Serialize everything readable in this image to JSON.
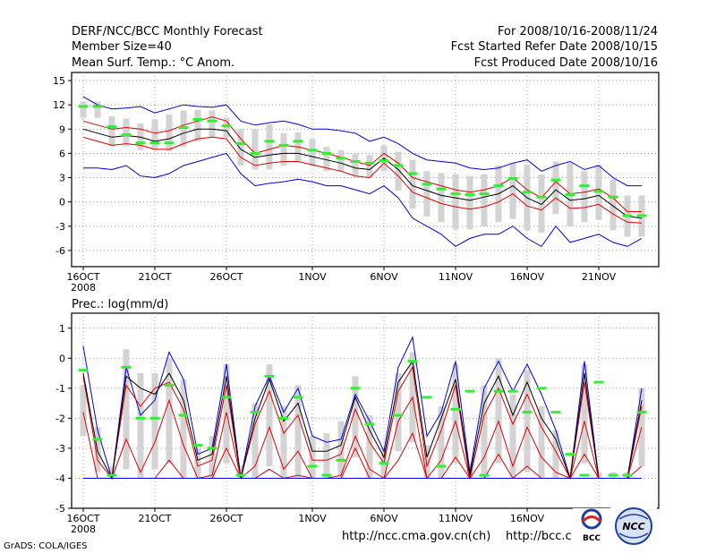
{
  "header": {
    "title_line1": "DERF/NCC/BCC Monthly Forecast",
    "title_line2": "Member Size=40",
    "title_line3": "Mean Surf. Temp.: °C Anom.",
    "period": "For 2008/10/16-2008/11/24",
    "refer_date": "Fcst Started Refer Date 2008/10/15",
    "produced_date": "Fcst Produced Date 2008/10/16"
  },
  "footer": {
    "credit": "GrADS: COLA/IGES",
    "url1": "http://ncc.cma.gov.cn(ch)",
    "url2": "http://bcc.c",
    "logo1_text": "BCC",
    "logo2_text": "NCC"
  },
  "colors": {
    "ensemble_bar": "#d3d3d3",
    "ensemble_mean": "#000000",
    "inner_band": "#e00000",
    "outer_band": "#0000e0",
    "observed": "#33ee33"
  },
  "chart_data": [
    {
      "type": "line",
      "title": "Mean Surf. Temp.: °C Anom.",
      "xlabel": "",
      "ylabel": "°C anomaly",
      "days": 40,
      "xticks": [
        {
          "day": 0,
          "label": "16OCT"
        },
        {
          "day": 5,
          "label": "21OCT"
        },
        {
          "day": 10,
          "label": "26OCT"
        },
        {
          "day": 16,
          "label": "1NOV"
        },
        {
          "day": 21,
          "label": "6NOV"
        },
        {
          "day": 26,
          "label": "11NOV"
        },
        {
          "day": 31,
          "label": "16NOV"
        },
        {
          "day": 36,
          "label": "21NOV"
        }
      ],
      "year_label": "2008",
      "ylim": [
        -8,
        16
      ],
      "yticks": [
        -6,
        -3,
        0,
        3,
        6,
        9,
        12,
        15
      ],
      "grid": true,
      "series": [
        {
          "name": "max",
          "style": "blue",
          "values": [
            13.0,
            12.0,
            11.5,
            11.6,
            11.8,
            11.0,
            11.5,
            12.0,
            11.8,
            11.7,
            12.0,
            10.0,
            9.5,
            9.8,
            10.0,
            9.6,
            9.0,
            9.0,
            8.8,
            8.5,
            7.5,
            8.0,
            7.2,
            6.0,
            5.2,
            5.0,
            4.8,
            4.2,
            4.0,
            4.2,
            4.8,
            5.2,
            3.8,
            4.5,
            5.0,
            4.0,
            4.5,
            3.0,
            2.0,
            2.0
          ]
        },
        {
          "name": "upper",
          "style": "red",
          "values": [
            10.0,
            9.5,
            9.0,
            9.2,
            9.0,
            8.5,
            8.8,
            9.5,
            10.0,
            10.5,
            10.0,
            7.8,
            6.0,
            6.5,
            7.0,
            6.8,
            6.4,
            6.0,
            5.5,
            5.0,
            4.5,
            6.0,
            4.8,
            3.0,
            2.5,
            2.0,
            1.5,
            1.2,
            1.5,
            2.0,
            3.0,
            1.5,
            0.5,
            2.5,
            1.0,
            1.2,
            1.6,
            0.5,
            -1.2,
            -1.2
          ]
        },
        {
          "name": "mean",
          "style": "black",
          "values": [
            9.0,
            8.5,
            8.0,
            8.2,
            8.0,
            7.5,
            7.8,
            8.5,
            9.0,
            9.0,
            8.8,
            6.5,
            5.5,
            5.8,
            6.0,
            6.0,
            5.6,
            5.2,
            4.8,
            4.2,
            4.0,
            5.4,
            4.0,
            2.0,
            1.4,
            0.8,
            0.5,
            0.2,
            0.6,
            1.0,
            2.0,
            0.5,
            -0.3,
            1.5,
            0.2,
            0.4,
            0.8,
            -0.5,
            -1.8,
            -2.0
          ]
        },
        {
          "name": "lower",
          "style": "red",
          "values": [
            8.0,
            7.5,
            7.0,
            7.2,
            7.0,
            6.5,
            6.5,
            7.2,
            7.8,
            8.0,
            7.8,
            5.5,
            4.5,
            4.8,
            5.0,
            5.0,
            4.6,
            4.2,
            3.8,
            3.2,
            3.0,
            4.8,
            3.2,
            1.2,
            0.5,
            -0.2,
            -0.6,
            -0.9,
            -0.6,
            0.0,
            1.0,
            -0.5,
            -1.0,
            0.5,
            -0.8,
            -0.7,
            -0.3,
            -1.5,
            -2.5,
            -2.6
          ]
        },
        {
          "name": "min",
          "style": "blue",
          "values": [
            4.2,
            4.2,
            4.0,
            4.5,
            3.2,
            3.0,
            3.5,
            4.5,
            5.0,
            5.5,
            6.0,
            3.5,
            2.0,
            2.3,
            2.5,
            2.8,
            2.5,
            2.0,
            2.0,
            1.5,
            1.0,
            2.0,
            0.5,
            -2.0,
            -3.0,
            -4.0,
            -5.5,
            -4.5,
            -4.0,
            -4.0,
            -3.0,
            -4.5,
            -5.5,
            -3.0,
            -5.0,
            -4.5,
            -4.0,
            -5.0,
            -5.5,
            -4.5
          ]
        },
        {
          "name": "observed",
          "style": "green",
          "values": [
            11.8,
            11.8,
            9.3,
            8.3,
            7.3,
            7.3,
            7.3,
            9.2,
            10.2,
            10.0,
            9.4,
            7.2,
            6.0,
            7.5,
            7.0,
            7.5,
            6.4,
            6.0,
            5.4,
            5.0,
            4.8,
            5.1,
            4.5,
            3.5,
            2.2,
            1.6,
            1.0,
            0.9,
            1.0,
            2.0,
            2.9,
            1.2,
            0.6,
            2.7,
            0.9,
            2.0,
            1.3,
            0.6,
            -1.7,
            -1.7
          ]
        }
      ],
      "ensemble_bars": {
        "low": [
          10.4,
          10.4,
          6.9,
          6.9,
          6.4,
          6.4,
          6.3,
          6.8,
          7.5,
          8.0,
          8.0,
          4.5,
          4.0,
          4.0,
          4.5,
          5.0,
          4.4,
          3.8,
          3.7,
          3.2,
          3.0,
          3.8,
          1.4,
          -0.8,
          -1.8,
          -2.5,
          -3.4,
          -3.4,
          -3.0,
          -2.5,
          -2.1,
          -3.5,
          -3.8,
          -1.5,
          -3.0,
          -2.5,
          -2.2,
          -3.5,
          -4.3,
          -4.3
        ],
        "high": [
          12.4,
          12.4,
          10.6,
          10.3,
          9.7,
          10.2,
          10.8,
          11.3,
          11.4,
          11.3,
          10.4,
          9.0,
          9.0,
          9.6,
          8.5,
          8.6,
          7.8,
          6.8,
          6.4,
          6.0,
          5.8,
          7.0,
          6.2,
          5.2,
          3.8,
          3.6,
          3.4,
          3.2,
          3.4,
          4.5,
          4.8,
          4.6,
          3.4,
          5.0,
          4.8,
          3.8,
          4.6,
          2.8,
          0.8,
          0.8
        ]
      }
    },
    {
      "type": "line",
      "title": "Prec.: log(mm/d)",
      "xlabel": "",
      "ylabel": "log(mm/d)",
      "days": 40,
      "xticks": [
        {
          "day": 0,
          "label": "16OCT"
        },
        {
          "day": 5,
          "label": "21OCT"
        },
        {
          "day": 10,
          "label": "26OCT"
        },
        {
          "day": 16,
          "label": "1NOV"
        },
        {
          "day": 21,
          "label": "6NOV"
        },
        {
          "day": 26,
          "label": "11NOV"
        },
        {
          "day": 31,
          "label": "16NOV"
        },
        {
          "day": 36,
          "label": "21NOV"
        }
      ],
      "year_label": "2008",
      "ylim": [
        -5,
        1.5
      ],
      "yticks": [
        -5,
        -4,
        -3,
        -2,
        -1,
        0,
        1
      ],
      "grid": true,
      "series": [
        {
          "name": "max",
          "style": "blue",
          "values": [
            0.4,
            -2.4,
            -4.0,
            -0.3,
            -1.9,
            -1.4,
            0.2,
            -0.7,
            -3.2,
            -3.0,
            -0.2,
            -4.0,
            -1.6,
            -0.6,
            -1.8,
            -1.0,
            -2.6,
            -2.8,
            -2.7,
            -1.2,
            -2.1,
            -3.1,
            -0.3,
            0.7,
            -2.6,
            -1.8,
            -0.1,
            -3.8,
            -1.0,
            -0.1,
            -1.1,
            -0.2,
            -1.2,
            -2.4,
            -4.0,
            -0.1,
            -4.0,
            -4.0,
            -4.0,
            -1.0
          ]
        },
        {
          "name": "upper",
          "style": "red",
          "values": [
            -0.6,
            -3.4,
            -4.0,
            -0.9,
            -1.6,
            -1.0,
            -0.8,
            -1.7,
            -3.6,
            -3.4,
            -0.9,
            -4.0,
            -2.2,
            -1.1,
            -2.5,
            -1.9,
            -3.4,
            -3.4,
            -3.2,
            -1.7,
            -2.8,
            -3.5,
            -1.1,
            -0.3,
            -3.6,
            -2.4,
            -0.9,
            -4.0,
            -1.9,
            -1.0,
            -2.2,
            -1.2,
            -2.3,
            -3.1,
            -4.0,
            -0.8,
            -4.0,
            -4.0,
            -4.0,
            -1.6
          ]
        },
        {
          "name": "mean",
          "style": "black",
          "values": [
            -0.5,
            -3.1,
            -4.0,
            -0.6,
            -1.0,
            -1.2,
            -0.5,
            -1.4,
            -3.4,
            -3.2,
            -0.6,
            -4.0,
            -2.0,
            -0.7,
            -2.1,
            -1.5,
            -3.1,
            -3.1,
            -2.9,
            -1.3,
            -2.4,
            -3.3,
            -0.8,
            -0.1,
            -3.3,
            -2.0,
            -0.7,
            -3.9,
            -1.5,
            -0.6,
            -1.9,
            -0.8,
            -2.0,
            -2.7,
            -4.0,
            -0.5,
            -4.0,
            -4.0,
            -4.0,
            -1.4
          ]
        },
        {
          "name": "lower",
          "style": "red",
          "values": [
            -1.8,
            -4.0,
            -4.0,
            -2.7,
            -3.8,
            -2.8,
            -1.4,
            -2.9,
            -4.0,
            -3.9,
            -1.8,
            -4.0,
            -3.6,
            -2.3,
            -3.7,
            -3.1,
            -4.0,
            -4.0,
            -3.9,
            -2.6,
            -3.7,
            -4.0,
            -2.1,
            -1.3,
            -4.0,
            -3.4,
            -2.1,
            -4.0,
            -3.3,
            -2.1,
            -3.6,
            -2.3,
            -3.3,
            -3.8,
            -4.0,
            -2.1,
            -4.0,
            -4.0,
            -4.0,
            -2.3
          ]
        },
        {
          "name": "min",
          "style": "red",
          "values": [
            -4.0,
            -4.0,
            -4.0,
            -4.0,
            -4.0,
            -4.0,
            -3.4,
            -4.0,
            -4.0,
            -4.0,
            -3.0,
            -4.0,
            -4.0,
            -3.7,
            -4.0,
            -3.9,
            -4.0,
            -4.0,
            -4.0,
            -3.0,
            -4.0,
            -4.0,
            -3.4,
            -2.5,
            -4.0,
            -4.0,
            -3.3,
            -4.0,
            -4.0,
            -3.2,
            -4.0,
            -3.6,
            -4.0,
            -4.0,
            -4.0,
            -3.2,
            -4.0,
            -4.0,
            -4.0,
            -3.6
          ]
        },
        {
          "name": "floor",
          "style": "blue",
          "values": [
            -4.0,
            -4.0,
            -4.0,
            -4.0,
            -4.0,
            -4.0,
            -4.0,
            -4.0,
            -4.0,
            -4.0,
            -4.0,
            -4.0,
            -4.0,
            -4.0,
            -4.0,
            -4.0,
            -4.0,
            -4.0,
            -4.0,
            -4.0,
            -4.0,
            -4.0,
            -4.0,
            -4.0,
            -4.0,
            -4.0,
            -4.0,
            -4.0,
            -4.0,
            -4.0,
            -4.0,
            -4.0,
            -4.0,
            -4.0,
            -4.0,
            -4.0,
            -4.0,
            -4.0,
            -4.0,
            -4.0
          ]
        },
        {
          "name": "observed",
          "style": "green",
          "values": [
            -0.4,
            -2.7,
            -3.9,
            -0.3,
            -2.0,
            -2.0,
            -0.9,
            -1.9,
            -2.9,
            -3.0,
            -1.3,
            -3.9,
            -1.8,
            -0.6,
            -2.0,
            -1.3,
            -3.6,
            -3.9,
            -3.4,
            -1.0,
            -2.2,
            -3.5,
            -1.9,
            -0.1,
            -1.3,
            -3.6,
            -1.7,
            -1.1,
            -3.9,
            -1.1,
            -1.1,
            -1.8,
            -1.0,
            -1.8,
            -3.2,
            -3.9,
            -0.8,
            -3.9,
            -3.9,
            -1.8
          ]
        }
      ],
      "ensemble_bars": {
        "low": [
          -2.6,
          -3.8,
          -4.0,
          -3.7,
          -4.0,
          -3.7,
          -3.5,
          -4.0,
          -4.0,
          -4.0,
          -3.5,
          -4.0,
          -4.0,
          -3.6,
          -4.0,
          -4.0,
          -4.0,
          -4.0,
          -4.0,
          -3.3,
          -4.0,
          -4.0,
          -3.1,
          -2.8,
          -4.0,
          -4.0,
          -3.5,
          -4.0,
          -4.0,
          -3.5,
          -4.0,
          -3.8,
          -4.0,
          -4.0,
          -4.0,
          -3.5,
          -4.0,
          -4.0,
          -4.0,
          -3.6
        ],
        "high": [
          -0.9,
          -2.3,
          -3.6,
          0.3,
          -0.5,
          -0.5,
          0.0,
          -0.7,
          -3.0,
          -2.6,
          -0.2,
          -3.6,
          -1.5,
          -0.2,
          -1.6,
          -0.9,
          -2.6,
          -2.5,
          -2.1,
          -0.6,
          -1.9,
          -3.0,
          -0.5,
          0.2,
          -2.9,
          -1.6,
          -0.2,
          -3.5,
          -0.9,
          0.0,
          -1.2,
          -0.4,
          -1.6,
          -2.4,
          -3.8,
          -0.2,
          -3.8,
          -3.8,
          -3.8,
          -1.0
        ]
      }
    }
  ]
}
